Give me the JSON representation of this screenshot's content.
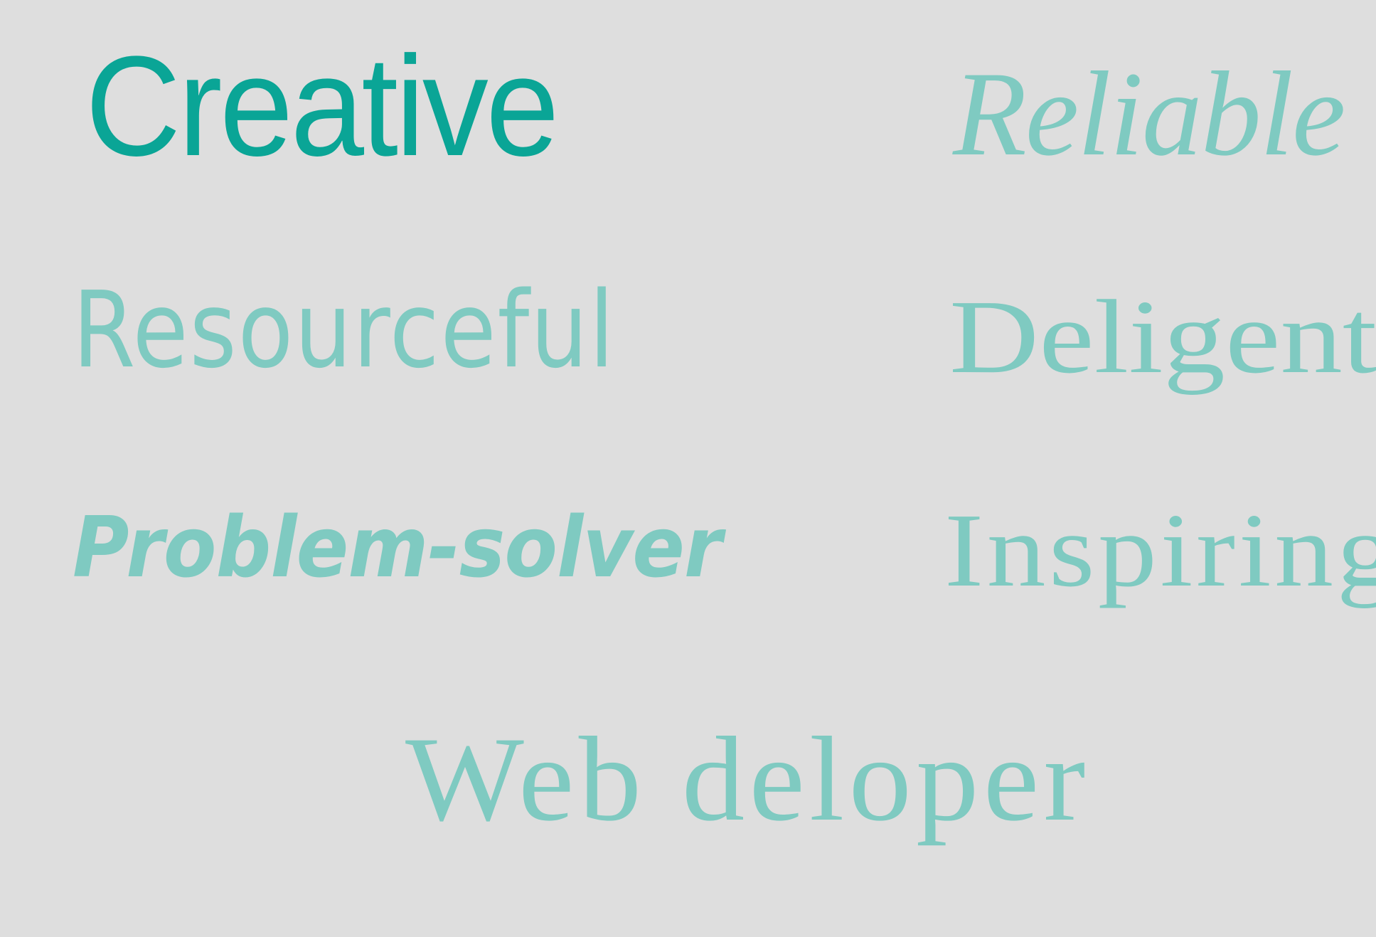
{
  "colors": {
    "background": "#dedede",
    "primary": "#0aa596",
    "secondary": "#7fcac1"
  },
  "words": {
    "creative": "Creative",
    "reliable": "Reliable",
    "resourceful": "Resourceful",
    "deligent": "Deligent",
    "problem_solver": "Problem-solver",
    "inspiring": "Inspiring",
    "web_deloper": "Web deloper"
  }
}
